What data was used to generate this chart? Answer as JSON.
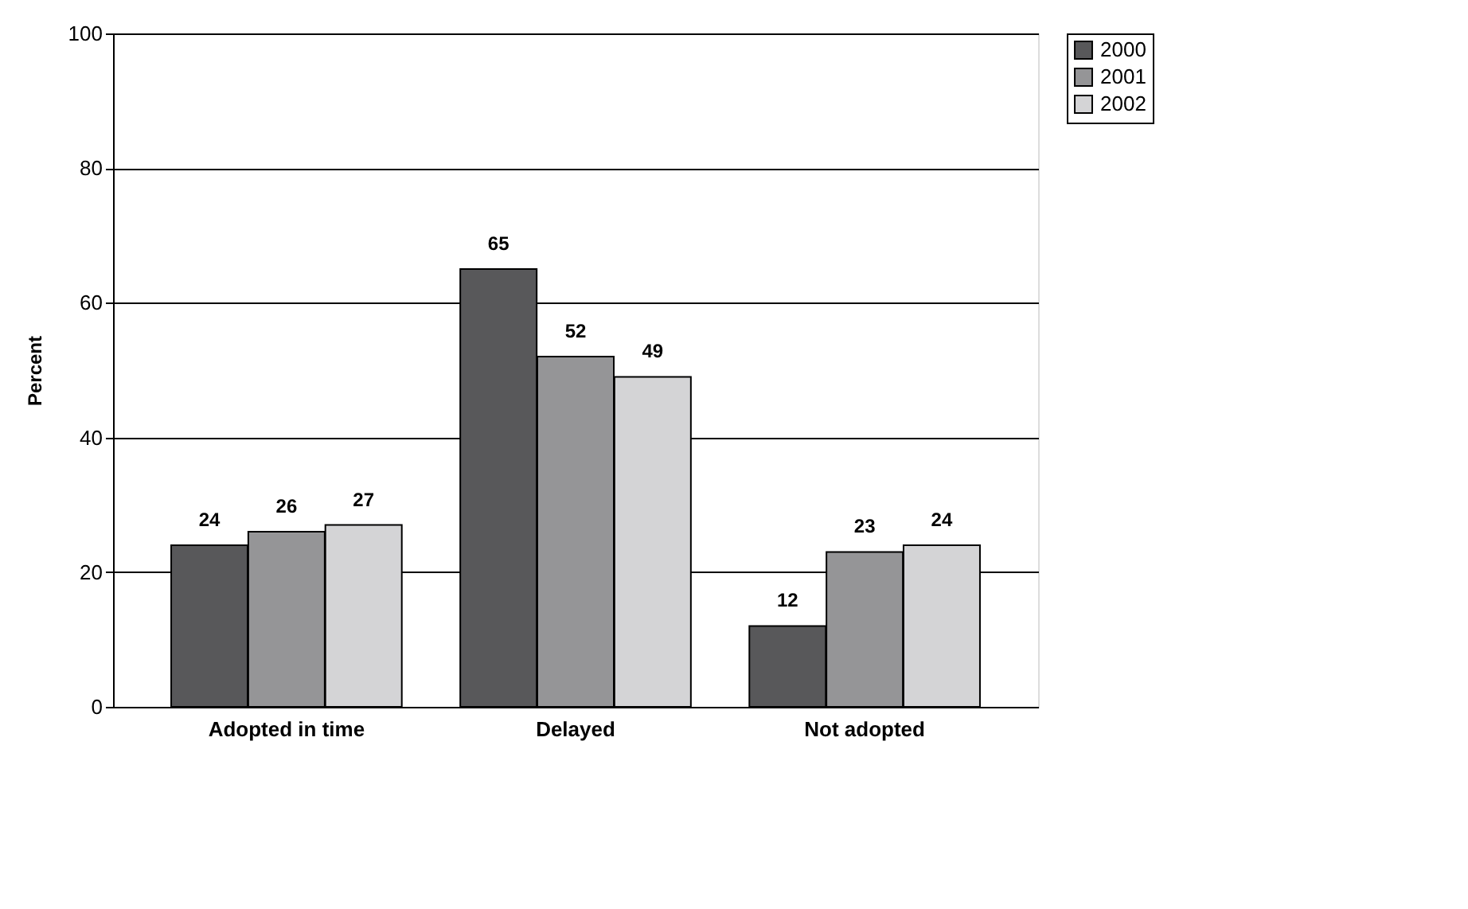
{
  "chart_data": {
    "type": "bar",
    "ylabel": "Percent",
    "categories": [
      "Adopted in time",
      "Delayed",
      "Not adopted"
    ],
    "series": [
      {
        "name": "2000",
        "color": "#58585a",
        "values": [
          24,
          65,
          12
        ]
      },
      {
        "name": "2001",
        "color": "#959597",
        "values": [
          26,
          52,
          23
        ]
      },
      {
        "name": "2002",
        "color": "#d4d4d6",
        "values": [
          27,
          49,
          24
        ]
      }
    ],
    "ylim": [
      0,
      100
    ],
    "yticks": [
      0,
      20,
      40,
      60,
      80,
      100
    ],
    "grid": "y",
    "legend": "right",
    "data_labels": true
  }
}
